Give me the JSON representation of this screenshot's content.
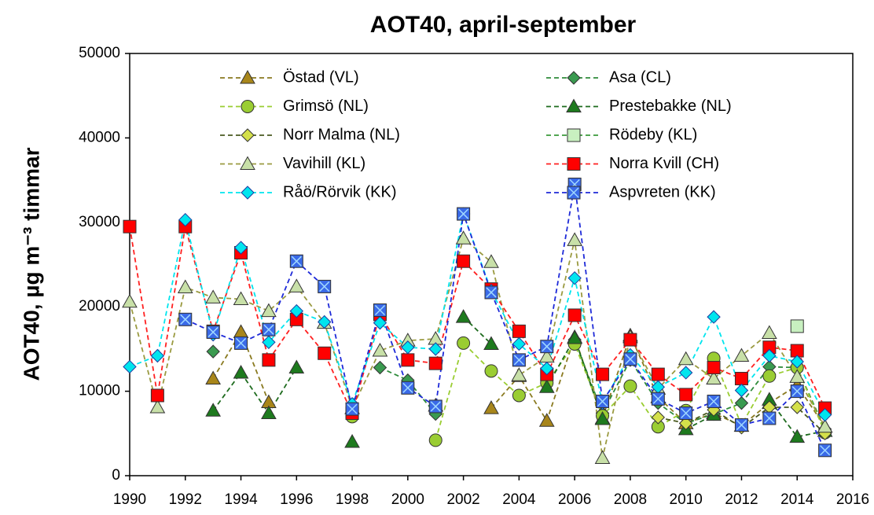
{
  "chart_data": {
    "type": "line",
    "title": "AOT40, april-september",
    "y_label": "AOT40, µg m⁻³ timmar",
    "x": [
      1990,
      1991,
      1992,
      1993,
      1994,
      1995,
      1996,
      1997,
      1998,
      1999,
      2000,
      2001,
      2002,
      2003,
      2004,
      2005,
      2006,
      2007,
      2008,
      2009,
      2010,
      2011,
      2012,
      2013,
      2014,
      2015
    ],
    "xlim": [
      1990,
      2016
    ],
    "xticks": [
      1990,
      1992,
      1994,
      1996,
      1998,
      2000,
      2002,
      2004,
      2006,
      2008,
      2010,
      2012,
      2014,
      2016
    ],
    "ylim": [
      0,
      50000
    ],
    "yticks": [
      0,
      10000,
      20000,
      30000,
      40000,
      50000
    ],
    "series": [
      {
        "name": "Östad (VL)",
        "color": "#8a7a20",
        "marker": "triangle",
        "marker_fill": "#a8861a",
        "values": [
          null,
          null,
          null,
          11500,
          17000,
          8700,
          null,
          null,
          null,
          null,
          null,
          8300,
          null,
          8000,
          11800,
          6500,
          16400,
          6800,
          16600,
          9300,
          6200,
          7400,
          5900,
          8600,
          10700,
          5800
        ]
      },
      {
        "name": "Asa (CL)",
        "color": "#2e8b3a",
        "marker": "diamond",
        "marker_fill": "#3a9a50",
        "values": [
          null,
          null,
          null,
          14700,
          null,
          null,
          null,
          null,
          null,
          12800,
          11300,
          7300,
          null,
          null,
          null,
          null,
          16100,
          7400,
          13700,
          8600,
          6200,
          7300,
          8600,
          12900,
          12800,
          5500
        ]
      },
      {
        "name": "Grimsö (NL)",
        "color": "#9acd32",
        "marker": "circle",
        "marker_fill": "#9acd32",
        "values": [
          null,
          null,
          null,
          null,
          null,
          null,
          null,
          null,
          7000,
          null,
          null,
          4200,
          15700,
          12400,
          9500,
          11000,
          15600,
          7100,
          10600,
          5800,
          7700,
          13900,
          6000,
          11800,
          12800,
          5100
        ]
      },
      {
        "name": "Prestebakke (NL)",
        "color": "#1e6b1e",
        "marker": "triangle",
        "marker_fill": "#1e7a1e",
        "values": [
          null,
          null,
          null,
          7700,
          12200,
          7400,
          12800,
          null,
          4000,
          null,
          null,
          null,
          18800,
          15600,
          null,
          10500,
          16300,
          6700,
          null,
          null,
          5500,
          7200,
          null,
          9000,
          4600,
          5300
        ]
      },
      {
        "name": "Norr Malma (NL)",
        "color": "#4a5a20",
        "marker": "diamond",
        "marker_fill": "#d4e04a",
        "values": [
          null,
          null,
          null,
          null,
          null,
          null,
          null,
          null,
          null,
          null,
          null,
          null,
          null,
          null,
          null,
          null,
          null,
          null,
          null,
          6900,
          6200,
          7800,
          5700,
          8100,
          8100,
          5000
        ]
      },
      {
        "name": "Rödeby (KL)",
        "color": "#3a9a3a",
        "marker": "square",
        "marker_fill": "#c8f0c0",
        "values": [
          null,
          null,
          null,
          null,
          null,
          null,
          null,
          null,
          null,
          null,
          null,
          null,
          null,
          null,
          null,
          null,
          null,
          null,
          null,
          null,
          null,
          null,
          null,
          null,
          17700,
          null
        ]
      },
      {
        "name": "Vavihill (KL)",
        "color": "#9a9a40",
        "marker": "triangle",
        "marker_fill": "#c8e0a8",
        "values": [
          20600,
          8100,
          22300,
          21100,
          20900,
          19500,
          22400,
          18100,
          8000,
          14800,
          16000,
          16200,
          28100,
          25300,
          11900,
          14100,
          27900,
          2100,
          16400,
          10300,
          13800,
          11500,
          14200,
          16900,
          11700,
          5800
        ]
      },
      {
        "name": "Norra Kvill (CH)",
        "color": "#ff2020",
        "marker": "square",
        "marker_fill": "#ff0000",
        "values": [
          29500,
          9500,
          29500,
          17100,
          26400,
          13700,
          18500,
          14500,
          7400,
          19100,
          13700,
          13300,
          25400,
          22100,
          17100,
          12000,
          19000,
          12000,
          16100,
          12000,
          9600,
          12800,
          11500,
          15200,
          14800,
          8000
        ]
      },
      {
        "name": "Råö/Rörvik (KK)",
        "color": "#00e5ee",
        "marker": "diamond",
        "marker_fill": "#00e5ee",
        "values": [
          12900,
          14200,
          30300,
          16700,
          27000,
          15800,
          19500,
          18200,
          8500,
          18100,
          15200,
          15000,
          31000,
          21900,
          15600,
          12700,
          23400,
          8600,
          14300,
          10500,
          12200,
          18800,
          10100,
          14200,
          13500,
          7200
        ]
      },
      {
        "name": "Aspvreten (KK)",
        "color": "#1e2ad8",
        "marker": "squarex",
        "marker_fill": "#3a6ae8",
        "values": [
          null,
          null,
          18500,
          17000,
          15700,
          17300,
          25400,
          22400,
          7900,
          19600,
          10400,
          8200,
          31000,
          21700,
          13700,
          15300,
          34500,
          8800,
          13800,
          9100,
          7400,
          8800,
          6000,
          6800,
          10000,
          3000
        ]
      }
    ]
  }
}
